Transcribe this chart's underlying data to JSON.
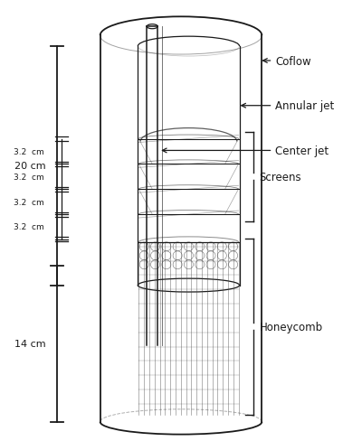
{
  "bg_color": "#ffffff",
  "line_color": "#1a1a1a",
  "gray_med": "#999999",
  "gray_dark": "#444444",
  "gray_light": "#cccccc",
  "labels": {
    "coflow": "Coflow",
    "annular_jet": "Annular jet",
    "center_jet": "Center jet",
    "screens": "Screens",
    "honeycomb": "Honeycomb"
  },
  "dimensions": {
    "20cm": "20 cm",
    "3p2cm": "3.2  cm",
    "14cm": "14 cm"
  },
  "figsize": [
    4.0,
    4.89
  ],
  "dpi": 100,
  "xlim": [
    0,
    4.0
  ],
  "ylim": [
    0,
    4.89
  ]
}
